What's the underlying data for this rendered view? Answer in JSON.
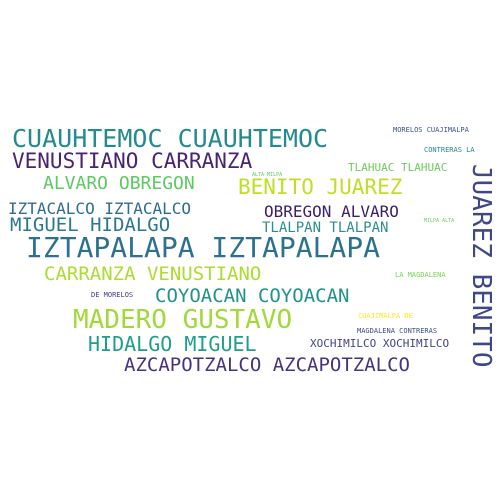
{
  "words": [
    {
      "text": "CUAUHTEMOC CUAUHTEMOC",
      "color": "#238b8d"
    },
    {
      "text": "VENUSTIANO CARRANZA",
      "color": "#482374"
    },
    {
      "text": "ALVARO OBREGON",
      "color": "#5ec962"
    },
    {
      "text": "BENITO JUAREZ",
      "color": "#bddf26"
    },
    {
      "text": "IZTACALCO IZTACALCO",
      "color": "#2e6d8e"
    },
    {
      "text": "OBREGON ALVARO",
      "color": "#3b1f6b"
    },
    {
      "text": "MIGUEL HIDALGO",
      "color": "#2a788e"
    },
    {
      "text": "TLALPAN TLALPAN",
      "color": "#2c8e8c"
    },
    {
      "text": "IZTAPALAPA IZTAPALAPA",
      "color": "#2c728e"
    },
    {
      "text": "CARRANZA VENUSTIANO",
      "color": "#addc30"
    },
    {
      "text": "COYOACAN COYOACAN",
      "color": "#21918c"
    },
    {
      "text": "MADERO GUSTAVO",
      "color": "#a0da39"
    },
    {
      "text": "HIDALGO MIGUEL",
      "color": "#1f9e89"
    },
    {
      "text": "AZCAPOTZALCO AZCAPOTZALCO",
      "color": "#46337f"
    },
    {
      "text": "XOCHIMILCO XOCHIMILCO",
      "color": "#414487"
    },
    {
      "text": "TLAHUAC TLAHUAC",
      "color": "#6ccd5a"
    },
    {
      "text": "MORELOS CUAJIMALPA",
      "color": "#3b528b"
    },
    {
      "text": "CONTRERAS LA",
      "color": "#24868e"
    },
    {
      "text": "LA MAGDALENA",
      "color": "#7ad151"
    },
    {
      "text": "CUAJIMALPA DE",
      "color": "#fde725"
    },
    {
      "text": "MAGDALENA CONTRERAS",
      "color": "#3e4a89"
    },
    {
      "text": "DE MORELOS",
      "color": "#443983"
    },
    {
      "text": "ALTA MILPA",
      "color": "#5ec962"
    },
    {
      "text": "MILPA ALTA",
      "color": "#6ccd5a"
    },
    {
      "text": "JUAREZ BENITO",
      "color": "#3f4788"
    }
  ]
}
